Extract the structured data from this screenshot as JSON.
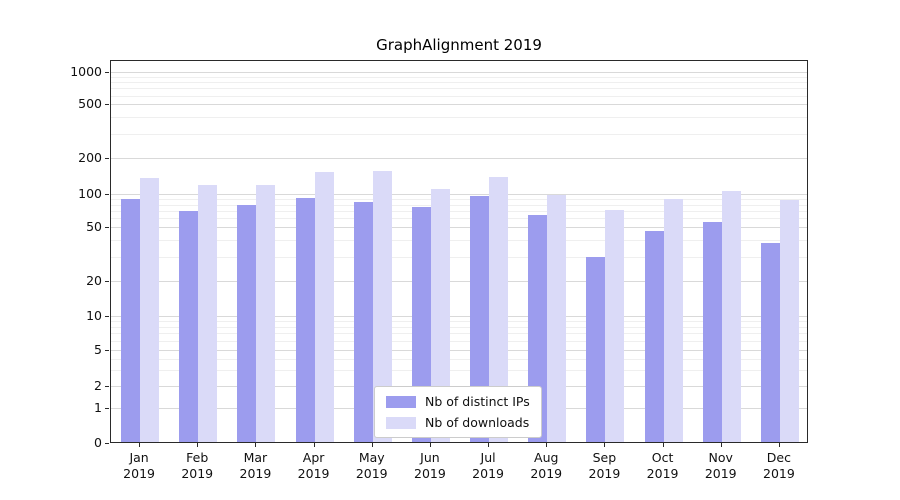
{
  "chart_data": {
    "type": "bar",
    "title": "GraphAlignment 2019",
    "categories": [
      "Jan 2019",
      "Feb 2019",
      "Mar 2019",
      "Apr 2019",
      "May 2019",
      "Jun 2019",
      "Jul 2019",
      "Aug 2019",
      "Sep 2019",
      "Oct 2019",
      "Nov 2019",
      "Dec 2019"
    ],
    "series": [
      {
        "name": "Nb of distinct IPs",
        "color": "#9c9cee",
        "values": [
          90,
          70,
          80,
          92,
          85,
          76,
          95,
          65,
          30,
          47,
          56,
          38
        ]
      },
      {
        "name": "Nb of downloads",
        "color": "#dadaf8",
        "values": [
          135,
          118,
          120,
          152,
          155,
          110,
          140,
          97,
          72,
          90,
          105,
          89
        ]
      }
    ],
    "xlabel": "",
    "ylabel": "",
    "yscale": "symlog",
    "yticks": [
      0,
      1,
      2,
      5,
      10,
      20,
      50,
      100,
      200,
      500,
      1000
    ],
    "ylim": [
      0,
      1000
    ],
    "grid": "horizontal major+minor",
    "legend_position": "lower center"
  },
  "colors": {
    "distinct_ips": "#9c9cee",
    "downloads": "#dadaf8",
    "grid_major": "#d9d9d9",
    "grid_minor": "#efefef",
    "axis": "#2a2a2a",
    "legend_border": "#cccccc"
  }
}
